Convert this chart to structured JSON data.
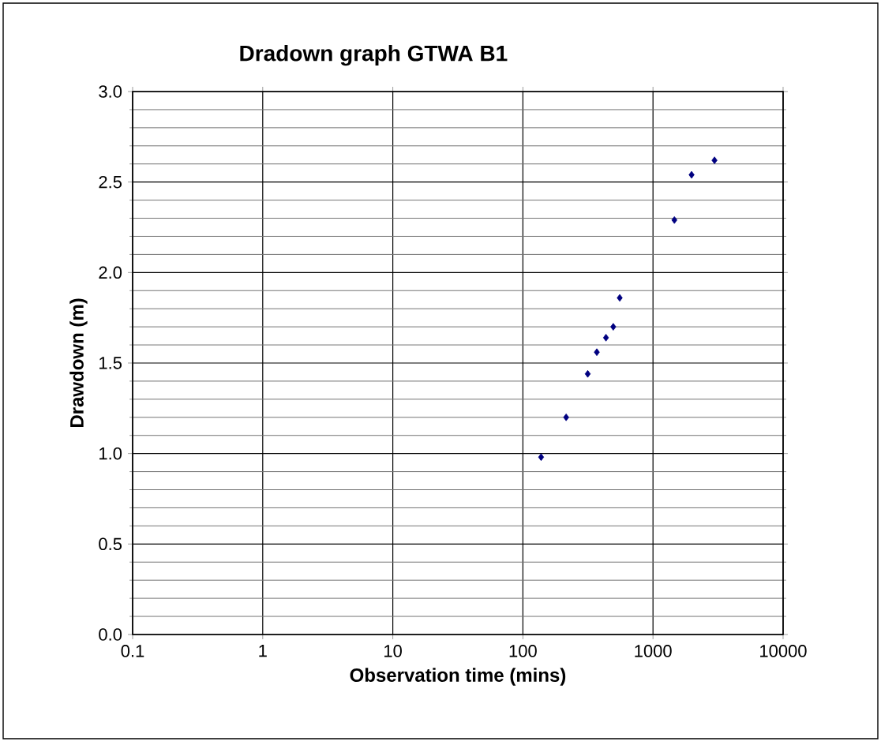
{
  "chart_data": {
    "type": "scatter",
    "title": "Dradown graph GTWA B1",
    "xlabel": "Observation time (mins)",
    "ylabel": "Drawdown (m)",
    "log": "x",
    "x": [
      138,
      215,
      315,
      370,
      435,
      495,
      555,
      1460,
      1980,
      2970
    ],
    "values": [
      0.98,
      1.2,
      1.44,
      1.56,
      1.64,
      1.7,
      1.86,
      2.29,
      2.54,
      2.62
    ],
    "color": "#000080",
    "marker": "diamond",
    "grid": true,
    "xlim": [
      0.1,
      10000
    ],
    "xticks": [
      0.1,
      1,
      10,
      100,
      1000,
      10000
    ],
    "ylim": [
      0,
      3
    ],
    "yticks": [
      {
        "value": 0,
        "label": "0.0"
      },
      {
        "value": 0.5,
        "label": "0.5"
      },
      {
        "value": 1,
        "label": "1.0"
      },
      {
        "value": 1.5,
        "label": "1.5"
      },
      {
        "value": 2,
        "label": "2.0"
      },
      {
        "value": 2.5,
        "label": "2.5"
      },
      {
        "value": 3,
        "label": "3.0"
      }
    ]
  }
}
